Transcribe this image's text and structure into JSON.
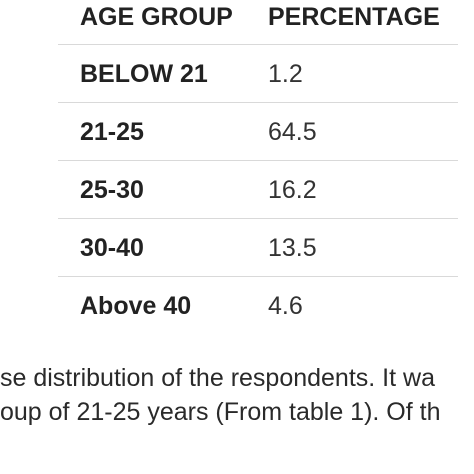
{
  "table": {
    "headers": [
      "AGE GROUP",
      "PERCENTAGE"
    ],
    "rows": [
      {
        "age_group": "BELOW 21",
        "percentage": "1.2"
      },
      {
        "age_group": "21-25",
        "percentage": "64.5"
      },
      {
        "age_group": "25-30",
        "percentage": "16.2"
      },
      {
        "age_group": "30-40",
        "percentage": "13.5"
      },
      {
        "age_group": "Above 40",
        "percentage": "4.6"
      }
    ]
  },
  "caption": {
    "line1": "se distribution of the respondents. It wa",
    "line2": "oup of 21-25 years (From table 1). Of th"
  }
}
